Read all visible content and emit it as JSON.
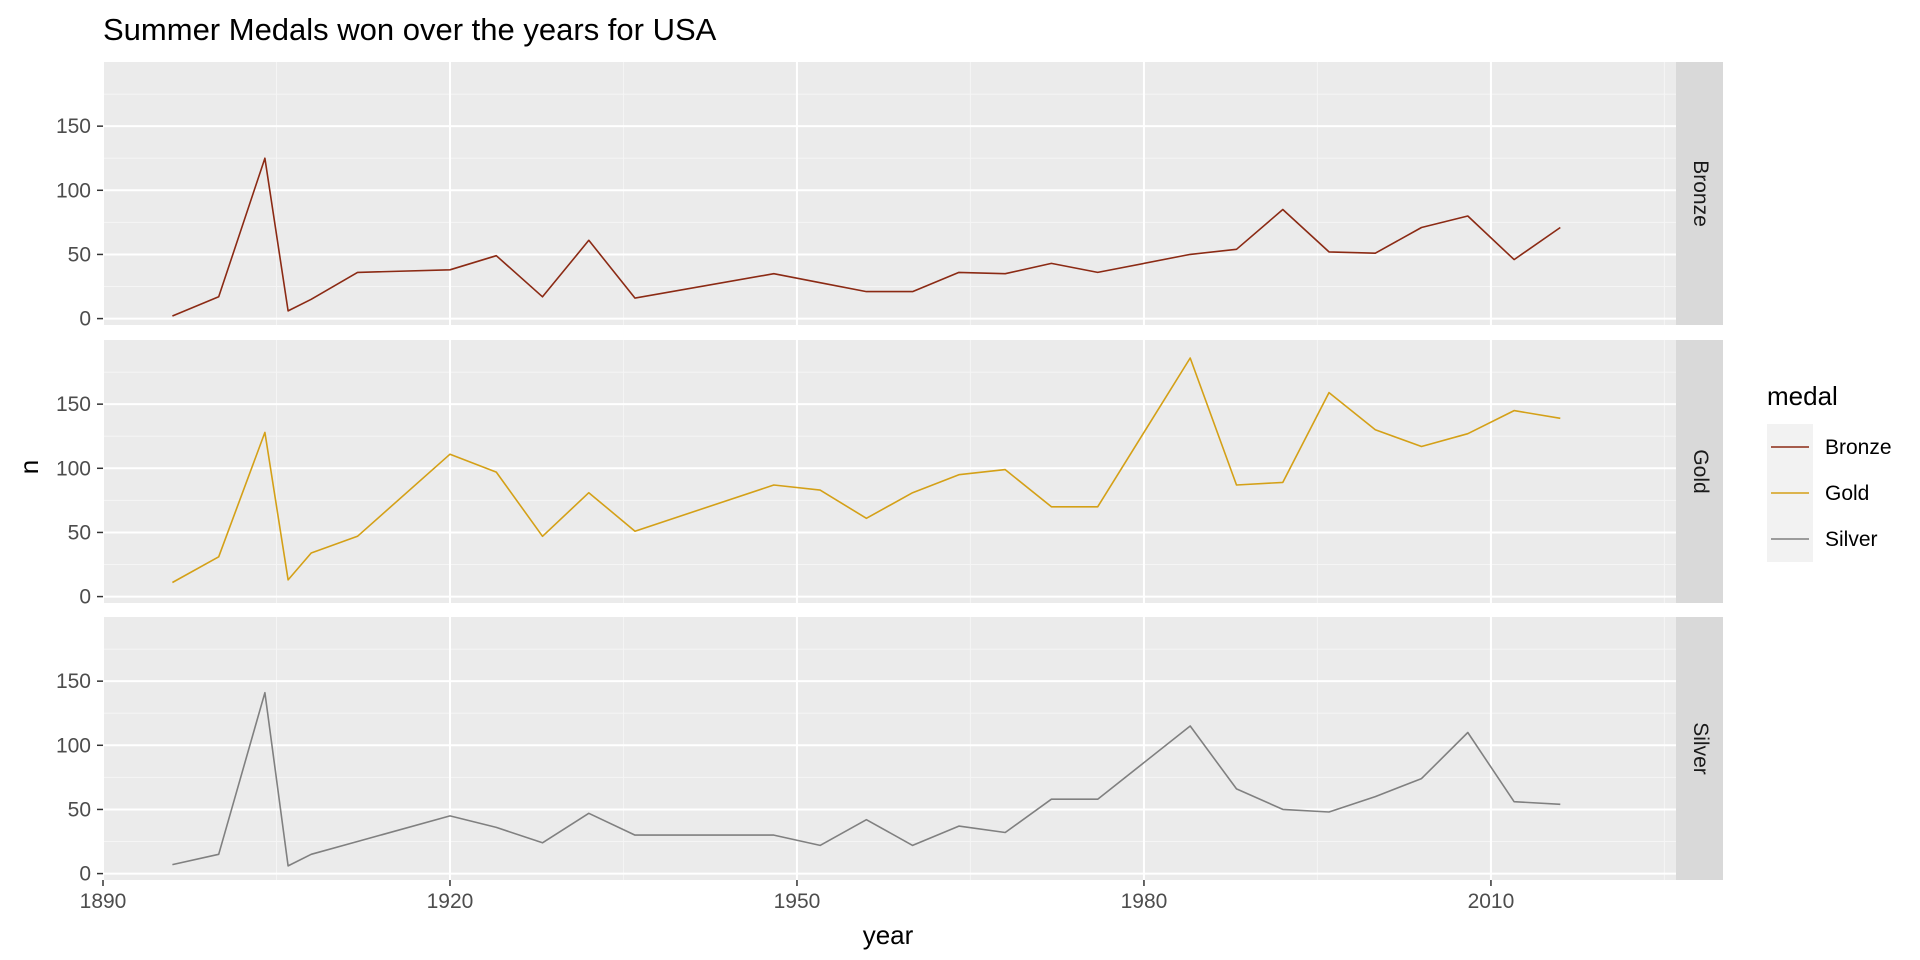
{
  "chart_data": {
    "type": "line",
    "title": "Summer Medals won over the years for USA",
    "xlabel": "year",
    "ylabel": "n",
    "xlim": [
      1890,
      2026
    ],
    "ylim": [
      -5,
      200
    ],
    "x_ticks": [
      1890,
      1920,
      1950,
      1980,
      2010
    ],
    "y_ticks": [
      0,
      50,
      100,
      150
    ],
    "facet_by": "medal",
    "grid": true,
    "legend": {
      "title": "medal",
      "position": "right",
      "entries": [
        "Bronze",
        "Gold",
        "Silver"
      ]
    },
    "x": [
      1896,
      1900,
      1904,
      1906,
      1908,
      1912,
      1920,
      1924,
      1928,
      1932,
      1936,
      1948,
      1952,
      1956,
      1960,
      1964,
      1968,
      1972,
      1976,
      1984,
      1988,
      1992,
      1996,
      2000,
      2004,
      2008,
      2012,
      2016
    ],
    "series": [
      {
        "name": "Bronze",
        "color": "#8b2a14",
        "values": [
          2,
          17,
          125,
          6,
          15,
          36,
          38,
          49,
          17,
          61,
          16,
          35,
          28,
          21,
          21,
          36,
          35,
          43,
          36,
          50,
          54,
          85,
          52,
          51,
          71,
          80,
          46,
          71
        ]
      },
      {
        "name": "Gold",
        "color": "#d4a017",
        "values": [
          11,
          31,
          128,
          13,
          34,
          47,
          111,
          97,
          47,
          81,
          51,
          87,
          83,
          61,
          81,
          95,
          99,
          70,
          70,
          186,
          87,
          89,
          159,
          130,
          117,
          127,
          145,
          139
        ]
      },
      {
        "name": "Silver",
        "color": "#808080",
        "values": [
          7,
          15,
          141,
          6,
          15,
          25,
          45,
          36,
          24,
          47,
          30,
          30,
          22,
          42,
          22,
          37,
          32,
          58,
          58,
          115,
          66,
          50,
          48,
          60,
          74,
          110,
          56,
          54
        ]
      }
    ]
  }
}
